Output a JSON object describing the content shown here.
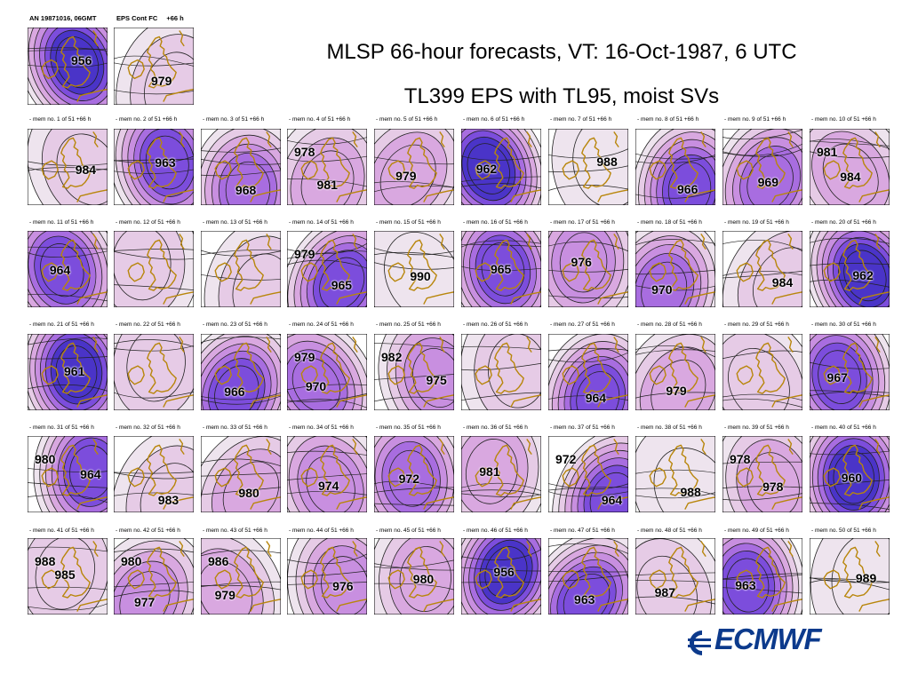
{
  "header": {
    "analysis_label": "AN 19871016, 06GMT",
    "control_label": "EPS Cont FC",
    "control_step": "+66 h"
  },
  "title": {
    "line1": "MLSP 66-hour forecasts, VT: 16-Oct-1987, 6 UTC",
    "line2": "TL399 EPS with TL95, moist SVs"
  },
  "colors": {
    "frame": "#000000",
    "coastline": "#b8860b",
    "shade_levels": [
      "#ffffff",
      "#eee4ee",
      "#e6cbe6",
      "#d9a8e0",
      "#c88fe0",
      "#a86de0",
      "#7c4ddc",
      "#4a34c8"
    ]
  },
  "top_panels": [
    {
      "id": "analysis",
      "low": 956,
      "high": null,
      "intensity": 6,
      "lowpos": "upper-center"
    },
    {
      "id": "control",
      "low": 979,
      "high": null,
      "intensity": 1,
      "lowpos": "lower-right"
    }
  ],
  "members": [
    {
      "no": "1",
      "label": "- mem no. 1 of  51  +66 h",
      "values": [
        "984"
      ]
    },
    {
      "no": "2",
      "label": "- mem no. 2 of  51  +66 h",
      "values": [
        "963"
      ]
    },
    {
      "no": "3",
      "label": "- mem no. 3 of  51  +66 h",
      "values": [
        "968"
      ]
    },
    {
      "no": "4",
      "label": "- mem no. 4 of  51  +66 h",
      "values": [
        "978",
        "981"
      ]
    },
    {
      "no": "5",
      "label": "- mem no. 5 of  51  +66 h",
      "values": [
        "979"
      ]
    },
    {
      "no": "6",
      "label": "- mem no. 6 of  51  +66 h",
      "values": [
        "962"
      ]
    },
    {
      "no": "7",
      "label": "- mem no. 7 of  51  +66 h",
      "values": [
        "988"
      ]
    },
    {
      "no": "8",
      "label": "- mem no. 8 of  51  +66 h",
      "values": [
        "966"
      ]
    },
    {
      "no": "9",
      "label": "- mem no. 9 of  51  +66 h",
      "values": [
        "969"
      ]
    },
    {
      "no": "10",
      "label": "- mem no. 10 of  51  +66 h",
      "values": [
        "981",
        "984"
      ]
    },
    {
      "no": "11",
      "label": "- mem no. 11 of  51  +66 h",
      "values": [
        "964"
      ]
    },
    {
      "no": "12",
      "label": "- mem no. 12 of  51  +66 h",
      "values": []
    },
    {
      "no": "13",
      "label": "- mem no. 13 of  51  +66 h",
      "values": []
    },
    {
      "no": "14",
      "label": "- mem no. 14 of  51  +66 h",
      "values": [
        "979",
        "965"
      ]
    },
    {
      "no": "15",
      "label": "- mem no. 15 of  51  +66 h",
      "values": [
        "990"
      ]
    },
    {
      "no": "16",
      "label": "- mem no. 16 of  51  +66 h",
      "values": [
        "965"
      ]
    },
    {
      "no": "17",
      "label": "- mem no. 17 of  51  +66 h",
      "values": [
        "976"
      ]
    },
    {
      "no": "18",
      "label": "- mem no. 18 of  51  +66 h",
      "values": [
        "970"
      ]
    },
    {
      "no": "19",
      "label": "- mem no. 19 of  51  +66 h",
      "values": [
        "984"
      ]
    },
    {
      "no": "20",
      "label": "- mem no. 20 of  51  +66 h",
      "values": [
        "962"
      ]
    },
    {
      "no": "21",
      "label": "- mem no. 21 of  51  +66 h",
      "values": [
        "961"
      ]
    },
    {
      "no": "22",
      "label": "- mem no. 22 of  51  +66 h",
      "values": []
    },
    {
      "no": "23",
      "label": "- mem no. 23 of  51  +66 h",
      "values": [
        "966"
      ]
    },
    {
      "no": "24",
      "label": "- mem no. 24 of  51  +66 h",
      "values": [
        "979",
        "970"
      ]
    },
    {
      "no": "25",
      "label": "- mem no. 25 of  51  +66 h",
      "values": [
        "982",
        "975"
      ]
    },
    {
      "no": "26",
      "label": "- mem no. 26 of  51  +66 h",
      "values": []
    },
    {
      "no": "27",
      "label": "- mem no. 27 of  51  +66 h",
      "values": [
        "964"
      ]
    },
    {
      "no": "28",
      "label": "- mem no. 28 of  51  +66 h",
      "values": [
        "979"
      ]
    },
    {
      "no": "29",
      "label": "- mem no. 29 of  51  +66 h",
      "values": []
    },
    {
      "no": "30",
      "label": "- mem no. 30 of  51  +66 h",
      "values": [
        "967"
      ]
    },
    {
      "no": "31",
      "label": "- mem no. 31 of  51  +66 h",
      "values": [
        "980",
        "964"
      ]
    },
    {
      "no": "32",
      "label": "- mem no. 32 of  51  +66 h",
      "values": [
        "983"
      ]
    },
    {
      "no": "33",
      "label": "- mem no. 33 of  51  +66 h",
      "values": [
        "980"
      ]
    },
    {
      "no": "34",
      "label": "- mem no. 34 of  51  +66 h",
      "values": [
        "974"
      ]
    },
    {
      "no": "35",
      "label": "- mem no. 35 of  51  +66 h",
      "values": [
        "972"
      ]
    },
    {
      "no": "36",
      "label": "- mem no. 36 of  51  +66 h",
      "values": [
        "981"
      ]
    },
    {
      "no": "37",
      "label": "- mem no. 37 of  51  +66 h",
      "values": [
        "972",
        "964"
      ]
    },
    {
      "no": "38",
      "label": "- mem no. 38 of  51  +66 h",
      "values": [
        "988"
      ]
    },
    {
      "no": "39",
      "label": "- mem no. 39 of  51  +66 h",
      "values": [
        "978",
        "978"
      ]
    },
    {
      "no": "40",
      "label": "- mem no. 40 of  51  +66 h",
      "values": [
        "960"
      ]
    },
    {
      "no": "41",
      "label": "- mem no. 41 of  51  +66 h",
      "values": [
        "988",
        "985"
      ]
    },
    {
      "no": "42",
      "label": "- mem no. 42 of  51  +66 h",
      "values": [
        "980",
        "977"
      ]
    },
    {
      "no": "43",
      "label": "- mem no. 43 of  51  +66 h",
      "values": [
        "986",
        "979"
      ]
    },
    {
      "no": "44",
      "label": "- mem no. 44 of  51  +66 h",
      "values": [
        "976"
      ]
    },
    {
      "no": "45",
      "label": "- mem no. 45 of  51  +66 h",
      "values": [
        "980"
      ]
    },
    {
      "no": "46",
      "label": "- mem no. 46 of  51  +66 h",
      "values": [
        "956"
      ]
    },
    {
      "no": "47",
      "label": "- mem no. 47 of  51  +66 h",
      "values": [
        "963"
      ]
    },
    {
      "no": "48",
      "label": "- mem no. 48 of  51  +66 h",
      "values": [
        "987"
      ]
    },
    {
      "no": "49",
      "label": "- mem no. 49 of  51  +66 h",
      "values": [
        "963"
      ]
    },
    {
      "no": "50",
      "label": "- mem no. 50 of  51  +66 h",
      "values": [
        "989"
      ]
    }
  ],
  "logo": {
    "text": "ECMWF"
  }
}
